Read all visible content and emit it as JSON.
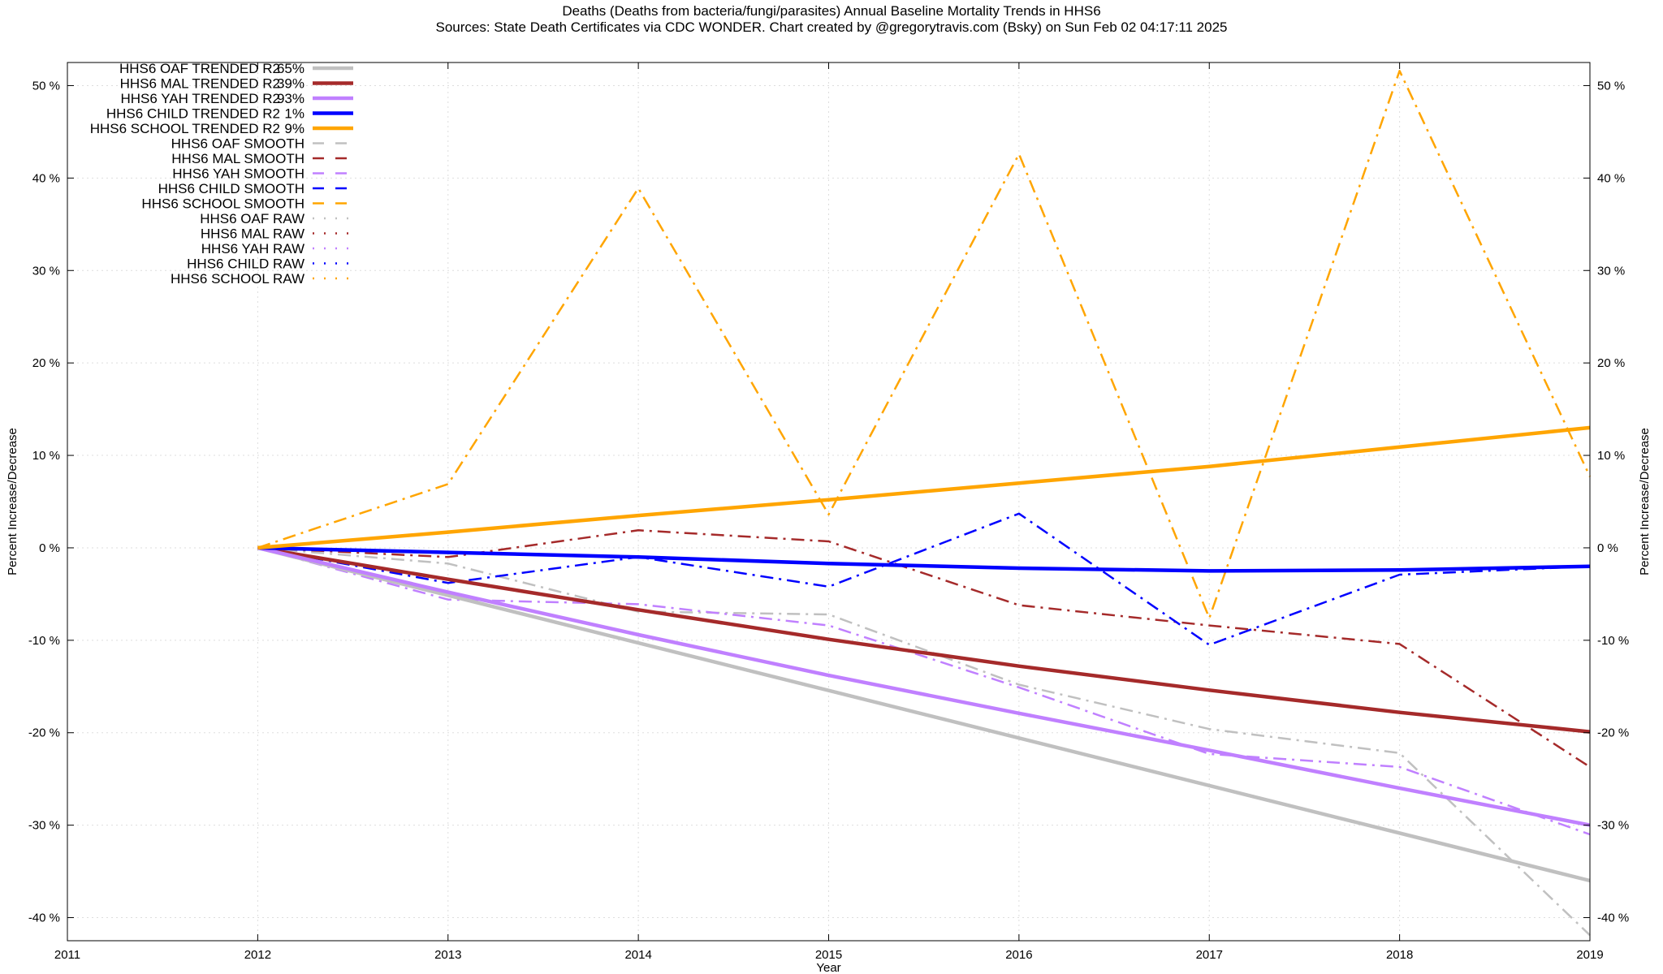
{
  "chart_data": {
    "type": "line",
    "title": "Deaths (Deaths from bacteria/fungi/parasites)  Annual Baseline Mortality Trends in HHS6",
    "subtitle": "Sources: State Death Certificates via CDC WONDER.              Chart created by @gregorytravis.com (Bsky) on Sun Feb 02 04:17:11 2025",
    "xlabel": "Year",
    "ylabel": "Percent Increase/Decrease",
    "y2label": "Percent Increase/Decrease",
    "xlim": [
      2011,
      2019
    ],
    "ylim": [
      -42.5,
      52.5
    ],
    "x_ticks": [
      2011,
      2012,
      2013,
      2014,
      2015,
      2016,
      2017,
      2018,
      2019
    ],
    "x_tick_labels": [
      "2011",
      "2012",
      "2013",
      "2014",
      "2015",
      "2016",
      "2017",
      "2018",
      "2019"
    ],
    "y_ticks": [
      -40,
      -30,
      -20,
      -10,
      0,
      10,
      20,
      30,
      40,
      50
    ],
    "y_tick_labels": [
      "-40 %",
      "-30 %",
      "-20 %",
      "-10 %",
      "0 %",
      "10 %",
      "20 %",
      "30 %",
      "40 %",
      "50 %"
    ],
    "grid": true,
    "legend_position": "top-left",
    "series": [
      {
        "name": "HHS6 OAF TRENDED R2  65%",
        "label": "HHS6 OAF TRENDED R2",
        "r2": "65%",
        "style": "solid",
        "color": "#c0c0c0",
        "x": [
          2012,
          2019
        ],
        "values": [
          0,
          -36
        ]
      },
      {
        "name": "HHS6 MAL TRENDED R2  39%",
        "label": "HHS6 MAL TRENDED R2",
        "r2": "39%",
        "style": "solid",
        "color": "#a52a2a",
        "x": [
          2012,
          2013,
          2014,
          2015,
          2016,
          2017,
          2018,
          2019
        ],
        "values": [
          0,
          -3.4,
          -6.7,
          -9.9,
          -12.8,
          -15.4,
          -17.8,
          -19.9
        ]
      },
      {
        "name": "HHS6 YAH TRENDED R2  93%",
        "label": "HHS6 YAH TRENDED R2",
        "r2": "93%",
        "style": "solid",
        "color": "#c080ff",
        "x": [
          2012,
          2013,
          2014,
          2015,
          2016,
          2017,
          2018,
          2019
        ],
        "values": [
          0,
          -4.8,
          -9.4,
          -13.8,
          -17.9,
          -21.9,
          -26.0,
          -30.0
        ]
      },
      {
        "name": "HHS6 CHILD TRENDED R2   1%",
        "label": "HHS6 CHILD TRENDED R2",
        "r2": "1%",
        "style": "solid",
        "color": "#0000ff",
        "x": [
          2012,
          2013,
          2014,
          2015,
          2016,
          2017,
          2018,
          2019
        ],
        "values": [
          0,
          -0.5,
          -1.0,
          -1.7,
          -2.2,
          -2.5,
          -2.4,
          -2.0
        ]
      },
      {
        "name": "HHS6 SCHOOL TRENDED R2   9%",
        "label": "HHS6 SCHOOL TRENDED R2",
        "r2": "9%",
        "style": "solid",
        "color": "#ffa500",
        "x": [
          2012,
          2013,
          2014,
          2015,
          2016,
          2017,
          2018,
          2019
        ],
        "values": [
          0,
          1.7,
          3.5,
          5.2,
          7.0,
          8.8,
          10.9,
          13.0
        ]
      },
      {
        "name": "HHS6 OAF SMOOTH",
        "style": "dashdot",
        "color": "#c0c0c0",
        "x": [
          2012,
          2013,
          2014,
          2015,
          2016,
          2017,
          2018,
          2019
        ],
        "values": [
          0,
          -1.7,
          -6.9,
          -7.2,
          -14.8,
          -19.6,
          -22.2,
          -41.9
        ]
      },
      {
        "name": "HHS6 MAL SMOOTH",
        "style": "dashdot",
        "color": "#a52a2a",
        "x": [
          2012,
          2013,
          2014,
          2015,
          2016,
          2017,
          2018,
          2019
        ],
        "values": [
          0,
          -1.0,
          1.9,
          0.7,
          -6.2,
          -8.4,
          -10.4,
          -23.7
        ]
      },
      {
        "name": "HHS6 YAH SMOOTH",
        "style": "dashdot",
        "color": "#c080ff",
        "x": [
          2012,
          2013,
          2014,
          2015,
          2016,
          2017,
          2018,
          2019
        ],
        "values": [
          0,
          -5.6,
          -6.1,
          -8.4,
          -15.1,
          -22.3,
          -23.7,
          -31.0
        ]
      },
      {
        "name": "HHS6 CHILD SMOOTH",
        "style": "dashdot",
        "color": "#0000ff",
        "x": [
          2012,
          2013,
          2014,
          2015,
          2016,
          2017,
          2018,
          2019
        ],
        "values": [
          0,
          -3.8,
          -1.0,
          -4.2,
          3.7,
          -10.5,
          -2.9,
          -2.0
        ]
      },
      {
        "name": "HHS6 SCHOOL SMOOTH",
        "style": "dashdot",
        "color": "#ffa500",
        "x": [
          2012,
          2013,
          2014,
          2015,
          2016,
          2017,
          2018,
          2019
        ],
        "values": [
          0,
          6.9,
          38.9,
          3.6,
          42.6,
          -7.6,
          51.6,
          7.7
        ]
      },
      {
        "name": "HHS6 OAF RAW",
        "style": "dotted",
        "color": "#c0c0c0",
        "x": [],
        "values": []
      },
      {
        "name": "HHS6 MAL RAW",
        "style": "dotted",
        "color": "#a52a2a",
        "x": [],
        "values": []
      },
      {
        "name": "HHS6 YAH RAW",
        "style": "dotted",
        "color": "#c080ff",
        "x": [],
        "values": []
      },
      {
        "name": "HHS6 CHILD RAW",
        "style": "dotted",
        "color": "#0000ff",
        "x": [],
        "values": []
      },
      {
        "name": "HHS6 SCHOOL RAW",
        "style": "dotted",
        "color": "#ffa500",
        "x": [],
        "values": []
      }
    ]
  }
}
